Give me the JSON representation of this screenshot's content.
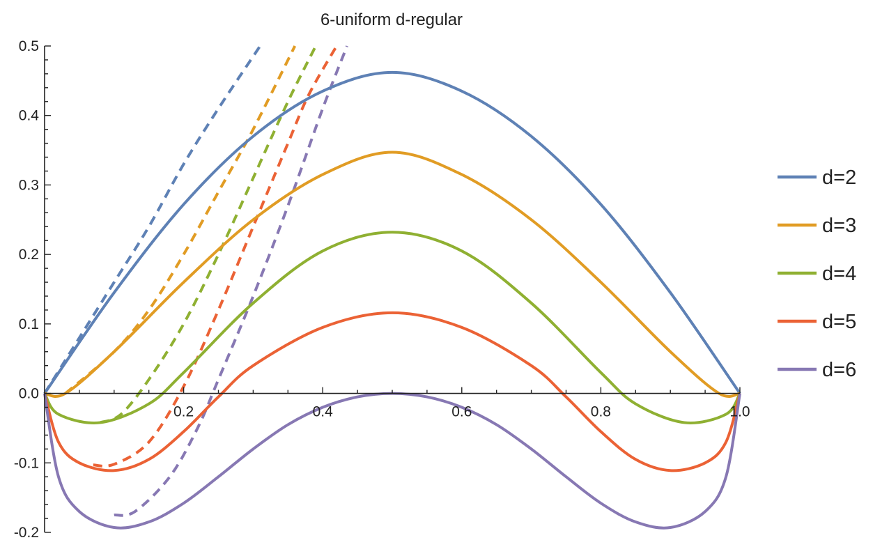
{
  "chart_data": {
    "type": "line",
    "title": "6-uniform d-regular",
    "xlabel": "",
    "ylabel": "",
    "xlim": [
      0,
      1
    ],
    "ylim": [
      -0.2,
      0.5
    ],
    "xticks": [
      0.2,
      0.4,
      0.6,
      0.8,
      1.0
    ],
    "xtick_labels": [
      "0.2",
      "0.4",
      "0.6",
      "0.8",
      "1.0"
    ],
    "yticks": [
      -0.2,
      -0.1,
      0.0,
      0.1,
      0.2,
      0.3,
      0.4,
      0.5
    ],
    "ytick_labels": [
      "-0.2",
      "-0.1",
      "0.0",
      "0.1",
      "0.2",
      "0.3",
      "0.4",
      "0.5"
    ],
    "grid": false,
    "legend_position": "right",
    "series": [
      {
        "name": "d=2",
        "color": "#5e81b5",
        "solid": {
          "x": [
            0,
            0.1,
            0.2,
            0.3,
            0.4,
            0.5,
            0.6,
            0.7,
            0.8,
            0.9,
            1.0
          ],
          "y": [
            0,
            0.145,
            0.272,
            0.37,
            0.435,
            0.462,
            0.435,
            0.37,
            0.272,
            0.145,
            0
          ]
        },
        "dashed": {
          "x": [
            0,
            0.05,
            0.1,
            0.15,
            0.2,
            0.25,
            0.31
          ],
          "y": [
            0,
            0.08,
            0.16,
            0.24,
            0.33,
            0.41,
            0.5
          ]
        }
      },
      {
        "name": "d=3",
        "color": "#e19c24",
        "solid": {
          "x": [
            0,
            0.03,
            0.1,
            0.2,
            0.3,
            0.4,
            0.5,
            0.6,
            0.7,
            0.8,
            0.9,
            0.97,
            1.0
          ],
          "y": [
            0,
            0.0,
            0.06,
            0.16,
            0.25,
            0.315,
            0.347,
            0.315,
            0.25,
            0.16,
            0.06,
            0.0,
            0
          ]
        },
        "dashed": {
          "x": [
            0.03,
            0.1,
            0.15,
            0.2,
            0.25,
            0.3,
            0.36
          ],
          "y": [
            0.0,
            0.06,
            0.12,
            0.2,
            0.29,
            0.38,
            0.5
          ]
        }
      },
      {
        "name": "d=4",
        "color": "#8fb032",
        "solid": {
          "x": [
            0,
            0.02,
            0.08,
            0.15,
            0.2,
            0.3,
            0.4,
            0.5,
            0.6,
            0.7,
            0.8,
            0.85,
            0.92,
            0.98,
            1.0
          ],
          "y": [
            0,
            -0.03,
            -0.042,
            -0.015,
            0.03,
            0.13,
            0.205,
            0.232,
            0.205,
            0.13,
            0.03,
            -0.015,
            -0.042,
            -0.03,
            0
          ]
        },
        "dashed": {
          "x": [
            0.08,
            0.11,
            0.15,
            0.2,
            0.25,
            0.3,
            0.35,
            0.39
          ],
          "y": [
            -0.042,
            -0.03,
            0.02,
            0.1,
            0.2,
            0.31,
            0.42,
            0.5
          ]
        }
      },
      {
        "name": "d=5",
        "color": "#eb6235",
        "solid": {
          "x": [
            0,
            0.02,
            0.05,
            0.1,
            0.15,
            0.2,
            0.25,
            0.3,
            0.4,
            0.5,
            0.6,
            0.7,
            0.75,
            0.8,
            0.85,
            0.9,
            0.95,
            0.98,
            1.0
          ],
          "y": [
            0,
            -0.07,
            -0.1,
            -0.111,
            -0.095,
            -0.055,
            -0.005,
            0.04,
            0.095,
            0.116,
            0.095,
            0.04,
            -0.005,
            -0.055,
            -0.095,
            -0.111,
            -0.1,
            -0.07,
            0
          ]
        },
        "dashed": {
          "x": [
            0.07,
            0.1,
            0.15,
            0.2,
            0.25,
            0.3,
            0.35,
            0.38,
            0.42
          ],
          "y": [
            -0.103,
            -0.102,
            -0.07,
            0.01,
            0.12,
            0.24,
            0.36,
            0.43,
            0.5
          ]
        }
      },
      {
        "name": "d=6",
        "color": "#8778b3",
        "solid": {
          "x": [
            0,
            0.02,
            0.05,
            0.1,
            0.15,
            0.2,
            0.25,
            0.3,
            0.35,
            0.4,
            0.45,
            0.5,
            0.55,
            0.6,
            0.65,
            0.7,
            0.75,
            0.8,
            0.85,
            0.9,
            0.95,
            0.98,
            1.0
          ],
          "y": [
            0,
            -0.12,
            -0.17,
            -0.193,
            -0.185,
            -0.158,
            -0.12,
            -0.08,
            -0.045,
            -0.02,
            -0.005,
            0,
            -0.005,
            -0.02,
            -0.045,
            -0.08,
            -0.12,
            -0.158,
            -0.185,
            -0.193,
            -0.17,
            -0.12,
            0
          ]
        },
        "dashed": {
          "x": [
            0.1,
            0.13,
            0.18,
            0.22,
            0.25,
            0.3,
            0.35,
            0.4,
            0.435
          ],
          "y": [
            -0.175,
            -0.17,
            -0.12,
            -0.05,
            0.02,
            0.14,
            0.27,
            0.41,
            0.5
          ]
        }
      }
    ]
  }
}
